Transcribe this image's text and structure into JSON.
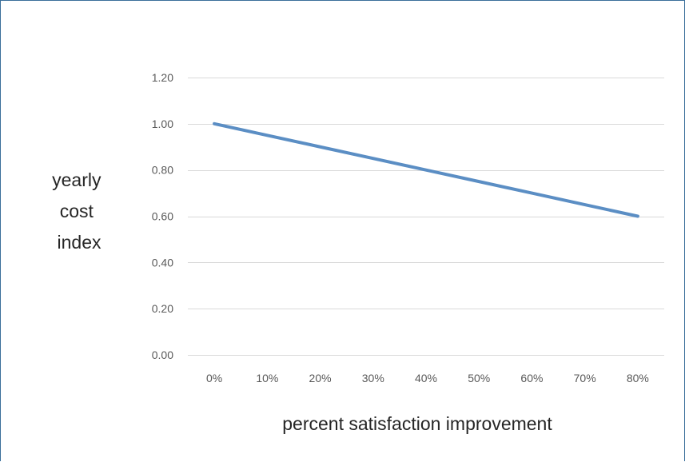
{
  "chart_data": {
    "type": "line",
    "title": "",
    "xlabel": "percent satisfaction improvement",
    "ylabel_lines": [
      "yearly",
      "cost",
      "index"
    ],
    "categories": [
      "0%",
      "10%",
      "20%",
      "30%",
      "40%",
      "50%",
      "60%",
      "70%",
      "80%"
    ],
    "x": [
      0,
      10,
      20,
      30,
      40,
      50,
      60,
      70,
      80
    ],
    "series": [
      {
        "values": [
          1.0,
          0.95,
          0.9,
          0.85,
          0.8,
          0.75,
          0.7,
          0.65,
          0.6
        ]
      }
    ],
    "y_ticks": [
      "0.00",
      "0.20",
      "0.40",
      "0.60",
      "0.80",
      "1.00",
      "1.20"
    ],
    "y_tick_values": [
      0,
      0.2,
      0.4,
      0.6,
      0.8,
      1.0,
      1.2
    ],
    "ylim": [
      0,
      1.2
    ],
    "grid": true,
    "legend": "none",
    "colors": {
      "line": "#5b8ec4",
      "grid": "#d9d9d9",
      "tick_text": "#595959",
      "axis_title_text": "#262626",
      "frame": "#3a6f9a"
    }
  }
}
